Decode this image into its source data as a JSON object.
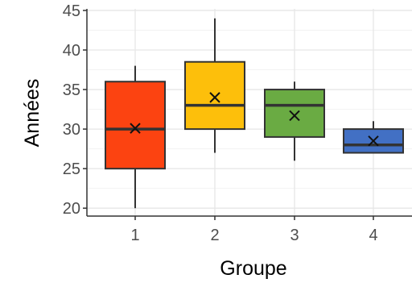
{
  "chart_data": {
    "type": "box",
    "xlabel": "Groupe",
    "ylabel": "Années",
    "ylim": [
      19,
      45.2
    ],
    "yticks": [
      20,
      25,
      30,
      35,
      40,
      45
    ],
    "categories": [
      "1",
      "2",
      "3",
      "4"
    ],
    "grid": true,
    "legend": "none",
    "boxes": [
      {
        "category": "1",
        "min": 20,
        "q1": 25,
        "median": 30,
        "q3": 36,
        "max": 38,
        "mean": 30.1,
        "color": "#fc4311"
      },
      {
        "category": "2",
        "min": 27,
        "q1": 30,
        "median": 33,
        "q3": 38.5,
        "max": 44,
        "mean": 34,
        "color": "#fdbf0b"
      },
      {
        "category": "3",
        "min": 26,
        "q1": 29,
        "median": 33,
        "q3": 35,
        "max": 36,
        "mean": 31.7,
        "color": "#6aab43"
      },
      {
        "category": "4",
        "min": 27,
        "q1": 27,
        "median": 28,
        "q3": 30,
        "max": 31,
        "mean": 28.5,
        "color": "#4270c4"
      }
    ]
  }
}
